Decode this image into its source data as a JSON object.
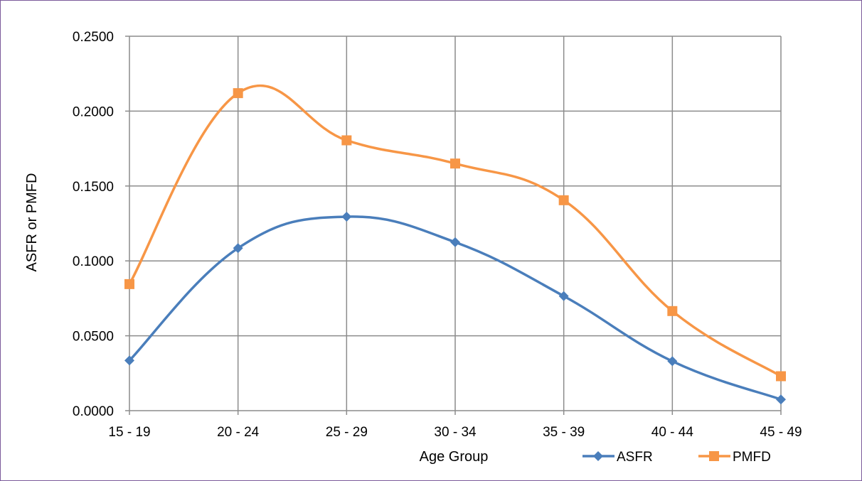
{
  "chart_data": {
    "type": "line",
    "title": "",
    "xlabel": "Age Group",
    "ylabel": "ASFR or PMFD",
    "categories": [
      "15 - 19",
      "20 - 24",
      "25 - 29",
      "30 - 34",
      "35 - 39",
      "40 - 44",
      "45 - 49"
    ],
    "ylim": [
      0,
      0.25
    ],
    "yticks": [
      "0.0000",
      "0.0500",
      "0.1000",
      "0.1500",
      "0.2000",
      "0.2500"
    ],
    "grid": true,
    "smooth": true,
    "legend_position": "bottom-right",
    "series": [
      {
        "name": "ASFR",
        "color": "#4a7ebb",
        "marker": "diamond",
        "values": [
          0.0335,
          0.1085,
          0.1295,
          0.1125,
          0.0765,
          0.033,
          0.0075
        ]
      },
      {
        "name": "PMFD",
        "color": "#f79646",
        "marker": "square",
        "values": [
          0.0845,
          0.212,
          0.1805,
          0.165,
          0.1405,
          0.0665,
          0.023
        ]
      }
    ]
  }
}
